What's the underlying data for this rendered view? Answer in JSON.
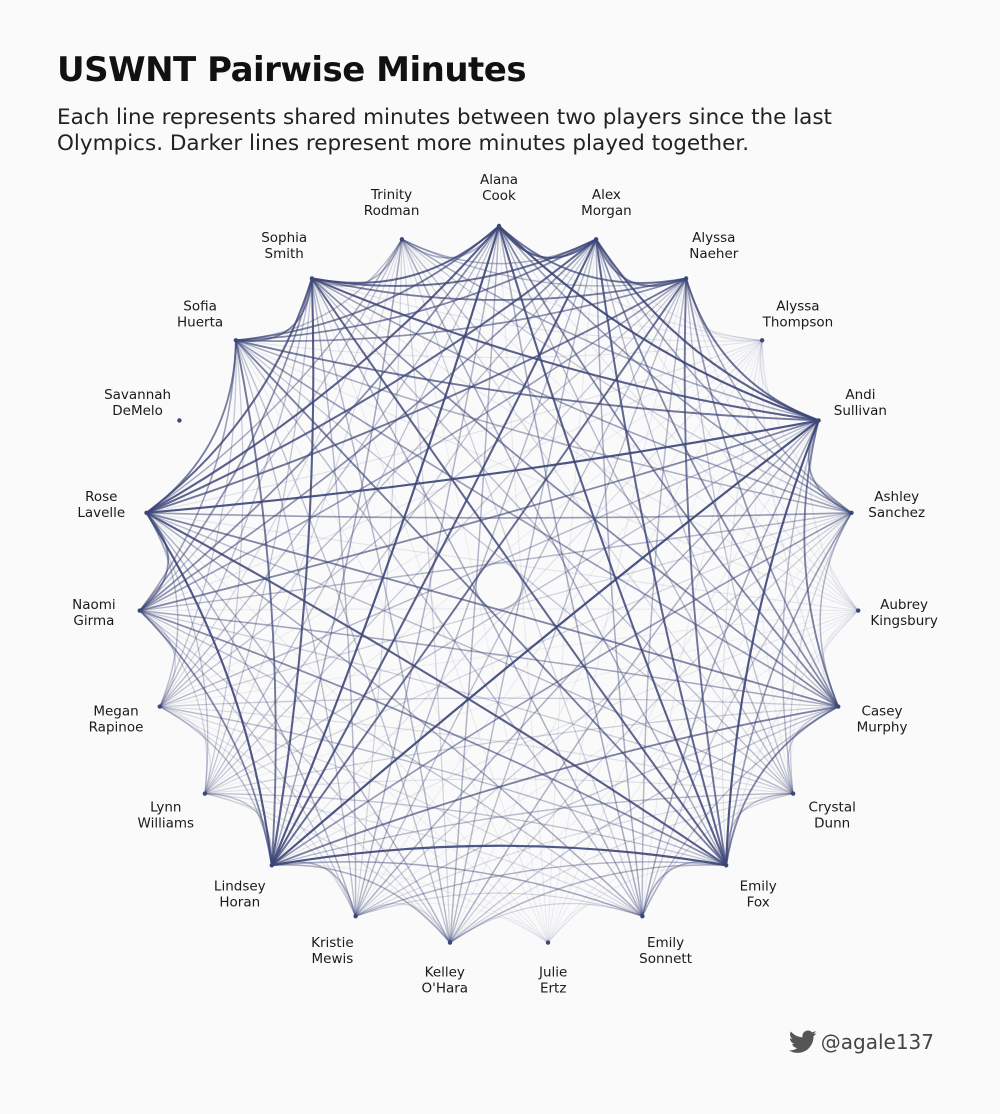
{
  "title": "USWNT Pairwise Minutes",
  "subtitle": "Each line represents shared minutes between two players since the last Olympics. Darker lines represent more minutes played together.",
  "credit": {
    "handle": "@agale137",
    "icon": "twitter-bird-icon"
  },
  "colors": {
    "edge": "#3c4677",
    "background": "#fafafa"
  },
  "chart_data": {
    "type": "chord",
    "nodes": [
      {
        "first": "Alana",
        "last": "Cook",
        "weight": 0.95
      },
      {
        "first": "Alex",
        "last": "Morgan",
        "weight": 0.9
      },
      {
        "first": "Alyssa",
        "last": "Naeher",
        "weight": 0.8
      },
      {
        "first": "Alyssa",
        "last": "Thompson",
        "weight": 0.1
      },
      {
        "first": "Andi",
        "last": "Sullivan",
        "weight": 1.0
      },
      {
        "first": "Ashley",
        "last": "Sanchez",
        "weight": 0.55
      },
      {
        "first": "Aubrey",
        "last": "Kingsbury",
        "weight": 0.08
      },
      {
        "first": "Casey",
        "last": "Murphy",
        "weight": 0.7
      },
      {
        "first": "Crystal",
        "last": "Dunn",
        "weight": 0.35
      },
      {
        "first": "Emily",
        "last": "Fox",
        "weight": 0.95
      },
      {
        "first": "Emily",
        "last": "Sonnett",
        "weight": 0.45
      },
      {
        "first": "Julie",
        "last": "Ertz",
        "weight": 0.05
      },
      {
        "first": "Kelley",
        "last": "O'Hara",
        "weight": 0.4
      },
      {
        "first": "Kristie",
        "last": "Mewis",
        "weight": 0.4
      },
      {
        "first": "Lindsey",
        "last": "Horan",
        "weight": 1.0
      },
      {
        "first": "Lynn",
        "last": "Williams",
        "weight": 0.3
      },
      {
        "first": "Megan",
        "last": "Rapinoe",
        "weight": 0.35
      },
      {
        "first": "Naomi",
        "last": "Girma",
        "weight": 0.65
      },
      {
        "first": "Rose",
        "last": "Lavelle",
        "weight": 0.95
      },
      {
        "first": "Savannah",
        "last": "DeMelo",
        "weight": 0.0
      },
      {
        "first": "Sofia",
        "last": "Huerta",
        "weight": 0.75
      },
      {
        "first": "Sophia",
        "last": "Smith",
        "weight": 0.9
      },
      {
        "first": "Trinity",
        "last": "Rodman",
        "weight": 0.45
      }
    ]
  }
}
